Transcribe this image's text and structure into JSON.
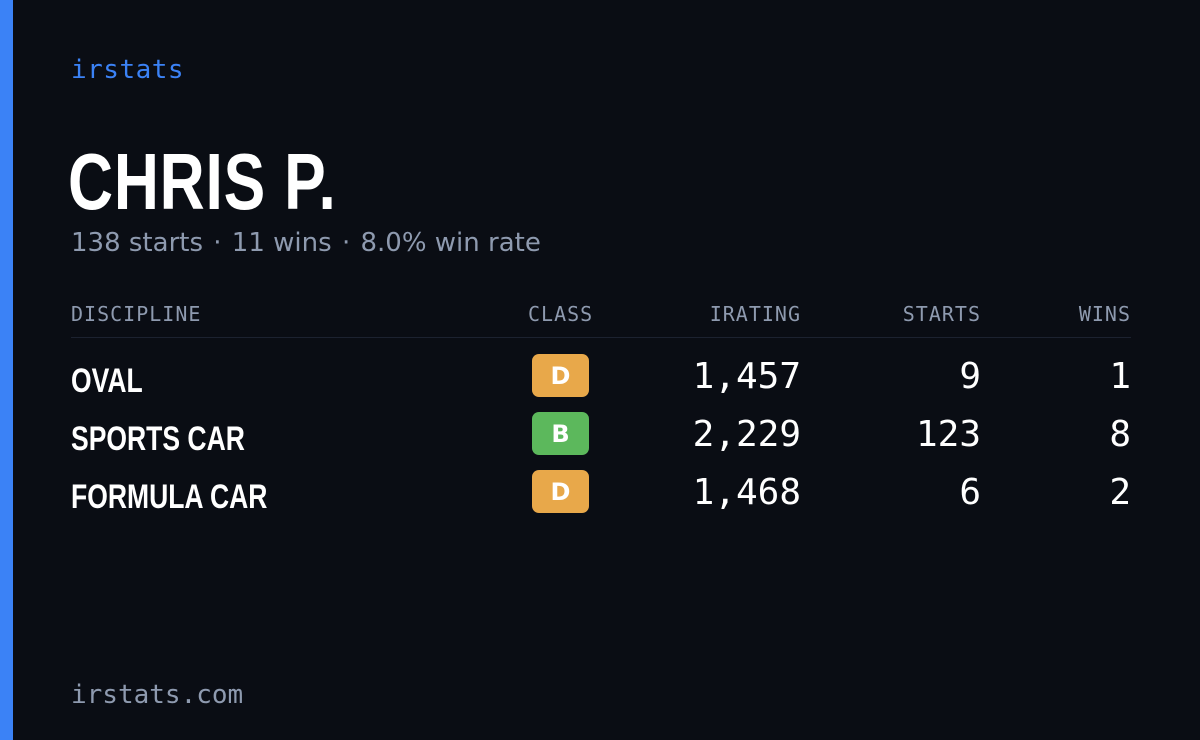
{
  "brand": "irstats",
  "player": {
    "name": "CHRIS P.",
    "starts_text": "138 starts",
    "wins_text": "11 wins",
    "win_rate_text": "8.0% win rate",
    "separator": "·"
  },
  "table": {
    "headers": {
      "discipline": "DISCIPLINE",
      "class": "CLASS",
      "irating": "IRATING",
      "starts": "STARTS",
      "wins": "WINS"
    },
    "rows": [
      {
        "discipline": "OVAL",
        "class": "D",
        "class_color": "#e8a84a",
        "irating": "1,457",
        "starts": "9",
        "wins": "1"
      },
      {
        "discipline": "SPORTS CAR",
        "class": "B",
        "class_color": "#5cb85c",
        "irating": "2,229",
        "starts": "123",
        "wins": "8"
      },
      {
        "discipline": "FORMULA CAR",
        "class": "D",
        "class_color": "#e8a84a",
        "irating": "1,468",
        "starts": "6",
        "wins": "2"
      }
    ]
  },
  "footer": "irstats.com",
  "colors": {
    "accent": "#3b82f6",
    "background": "#0a0d14",
    "muted": "#8e9aaf"
  }
}
